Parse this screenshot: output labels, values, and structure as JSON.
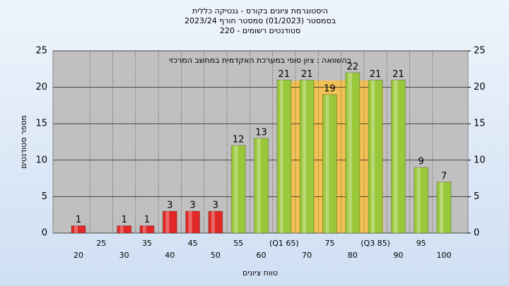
{
  "chart_data": {
    "type": "bar",
    "title": "היסטוגרמת ציונים בקורס - גנטיקה כללית",
    "subtitle": "בסמסטר  (01/2023)  סמסטר חורף 2023/24",
    "subtitle2": "סטודנטים רשומים - 220",
    "annotation": "בהשוואה : ציון סופי במערכת האקדמית במחשב המרכזי",
    "x_label": "טווח ציונים",
    "y_label": "מספר סטודנטים",
    "categories": [
      "20",
      "25",
      "30",
      "35",
      "40",
      "45",
      "50",
      "55",
      "60",
      "(Q1 65)",
      "70",
      "75",
      "80",
      "(Q3 85)",
      "90",
      "95",
      "100"
    ],
    "values": [
      1,
      0,
      1,
      1,
      3,
      3,
      3,
      12,
      13,
      21,
      21,
      19,
      22,
      21,
      21,
      9,
      7
    ],
    "value_labels": [
      "1",
      null,
      "1",
      "1",
      "3",
      "3",
      "3",
      "12",
      "13",
      "21",
      "21",
      "19",
      "22",
      "21",
      "21",
      "9",
      "7"
    ],
    "bar_colors": [
      "#e02828",
      "#e02828",
      "#e02828",
      "#e02828",
      "#e02828",
      "#e02828",
      "#e02828",
      "#9bc83a",
      "#9bc83a",
      "#9bc83a",
      "#9bc83a",
      "#9bc83a",
      "#9bc83a",
      "#9bc83a",
      "#9bc83a",
      "#9bc83a",
      "#9bc83a"
    ],
    "ylim": [
      0,
      25
    ],
    "yticks": [
      0,
      5,
      10,
      15,
      20,
      25
    ],
    "y2lim": [
      0,
      25
    ],
    "y2ticks": [
      0,
      5,
      10,
      15,
      20,
      25
    ],
    "grid": true
  }
}
